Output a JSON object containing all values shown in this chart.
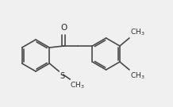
{
  "bg_color": "#f0f0f0",
  "bond_color": "#4a4a4a",
  "bond_width": 1.2,
  "font_size": 6.5,
  "font_color": "#2a2a2a",
  "figsize": [
    2.18,
    1.35
  ],
  "dpi": 100
}
